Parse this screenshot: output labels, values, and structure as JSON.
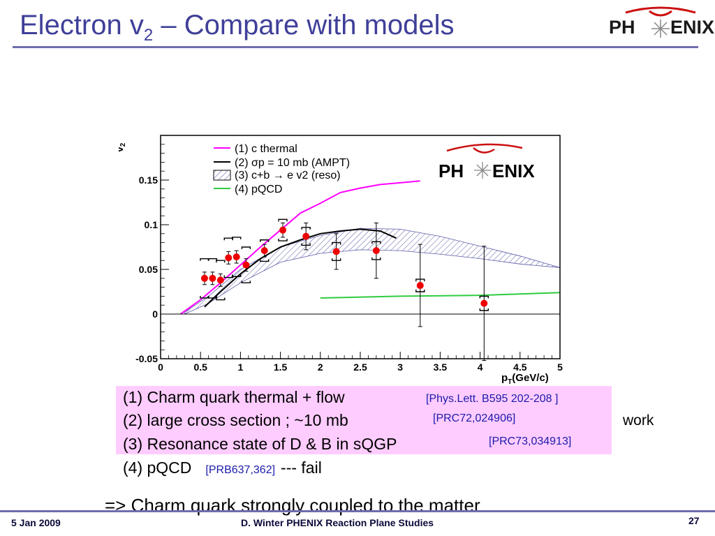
{
  "slide": {
    "title_main": "Electron v",
    "title_sub": "2",
    "title_rest": " – Compare with models",
    "logo_text_left": "PH",
    "logo_text_right": "ENIX"
  },
  "chart_data": {
    "type": "scatter",
    "xlabel": "p",
    "xlabel_sub": "T",
    "xlabel_unit": "(GeV/c)",
    "ylabel": "v",
    "ylabel_sub": "2",
    "xlim": [
      0,
      5
    ],
    "ylim": [
      -0.05,
      0.2
    ],
    "xticks": [
      0,
      0.5,
      1,
      1.5,
      2,
      2.5,
      3,
      3.5,
      4,
      4.5,
      5
    ],
    "xtick_labels": [
      "0",
      "0.5",
      "1",
      "1.5",
      "2",
      "2.5",
      "3",
      "3.5",
      "4",
      "4.5",
      "5"
    ],
    "yticks": [
      -0.05,
      0,
      0.05,
      0.1,
      0.15
    ],
    "ytick_labels": [
      "-0.05",
      "0",
      "0.05",
      "0.1",
      "0.15"
    ],
    "logo_text_left": "PH",
    "logo_text_right": "ENIX",
    "legend": [
      {
        "label": "(1) c thermal",
        "kind": "line",
        "color": "#ff00ff"
      },
      {
        "label": "(2) σp = 10 mb (AMPT)",
        "kind": "line",
        "color": "#000000"
      },
      {
        "label": "(3) c+b → e v2 (reso)",
        "kind": "band",
        "color": "#5a5aa8"
      },
      {
        "label": "(4) pQCD",
        "kind": "line",
        "color": "#2ecc40"
      }
    ],
    "models": [
      {
        "id": "thermal",
        "color": "#ff00ff",
        "x": [
          0.25,
          0.5,
          0.75,
          1.0,
          1.25,
          1.5,
          1.75,
          2.0,
          2.25,
          2.5,
          2.75,
          3.0,
          3.25
        ],
        "y": [
          0.0,
          0.016,
          0.035,
          0.055,
          0.075,
          0.094,
          0.113,
          0.124,
          0.136,
          0.141,
          0.145,
          0.147,
          0.149
        ]
      },
      {
        "id": "ampt",
        "color": "#000000",
        "x": [
          0.55,
          0.75,
          1.0,
          1.25,
          1.5,
          1.75,
          2.0,
          2.25,
          2.5,
          2.75,
          2.95
        ],
        "y": [
          0.008,
          0.025,
          0.045,
          0.062,
          0.075,
          0.083,
          0.09,
          0.093,
          0.095,
          0.093,
          0.085
        ]
      },
      {
        "id": "pqcd",
        "color": "#2ecc40",
        "x": [
          2.0,
          3.0,
          4.0,
          5.0
        ],
        "y": [
          0.018,
          0.02,
          0.021,
          0.024
        ]
      }
    ],
    "reso_band": {
      "color": "#5a5aa8",
      "x": [
        0.3,
        0.6,
        1.0,
        1.5,
        2.0,
        2.5,
        3.0,
        3.5,
        4.0,
        4.5,
        5.0
      ],
      "upper": [
        0.002,
        0.02,
        0.05,
        0.075,
        0.088,
        0.096,
        0.095,
        0.087,
        0.076,
        0.065,
        0.052
      ],
      "lower": [
        0.0,
        0.012,
        0.035,
        0.058,
        0.068,
        0.072,
        0.071,
        0.067,
        0.062,
        0.056,
        0.052
      ]
    },
    "points": [
      {
        "x": 0.55,
        "y": 0.04,
        "stat": 0.007,
        "sys": 0.022
      },
      {
        "x": 0.65,
        "y": 0.04,
        "stat": 0.007,
        "sys": 0.022
      },
      {
        "x": 0.75,
        "y": 0.038,
        "stat": 0.007,
        "sys": 0.022
      },
      {
        "x": 0.85,
        "y": 0.063,
        "stat": 0.007,
        "sys": 0.022
      },
      {
        "x": 0.95,
        "y": 0.064,
        "stat": 0.007,
        "sys": 0.022
      },
      {
        "x": 1.07,
        "y": 0.055,
        "stat": 0.007,
        "sys": 0.02
      },
      {
        "x": 1.3,
        "y": 0.071,
        "stat": 0.007,
        "sys": 0.012
      },
      {
        "x": 1.53,
        "y": 0.094,
        "stat": 0.008,
        "sys": 0.012
      },
      {
        "x": 1.82,
        "y": 0.087,
        "stat": 0.015,
        "sys": 0.01
      },
      {
        "x": 2.2,
        "y": 0.07,
        "stat": 0.02,
        "sys": 0.01
      },
      {
        "x": 2.7,
        "y": 0.071,
        "stat": 0.031,
        "sys": 0.01
      },
      {
        "x": 3.25,
        "y": 0.032,
        "stat": 0.046,
        "sys": 0.007
      },
      {
        "x": 4.05,
        "y": 0.012,
        "stat": 0.064,
        "sys": 0.008
      }
    ]
  },
  "refs": {
    "line1_text": "(1) Charm quark thermal + flow",
    "line1_ref": "[Phys.Lett. B595 202-208 ]",
    "line2_text": "(2) large cross section ; ~10 mb",
    "line2_ref": "[PRC72,024906]",
    "line3_text": "(3) Resonance state of D & B in sQGP",
    "line3_ref": "[PRC73,034913]",
    "line4_text": "(4) pQCD",
    "line4_ref": "[PRB637,362]",
    "line4_tail": "--- fail",
    "side_note": "work"
  },
  "conclusion": "=> Charm quark strongly coupled to the matter",
  "footer": {
    "date": "5 Jan 2009",
    "center": "D. Winter PHENIX Reaction Plane Studies",
    "page": "27"
  }
}
